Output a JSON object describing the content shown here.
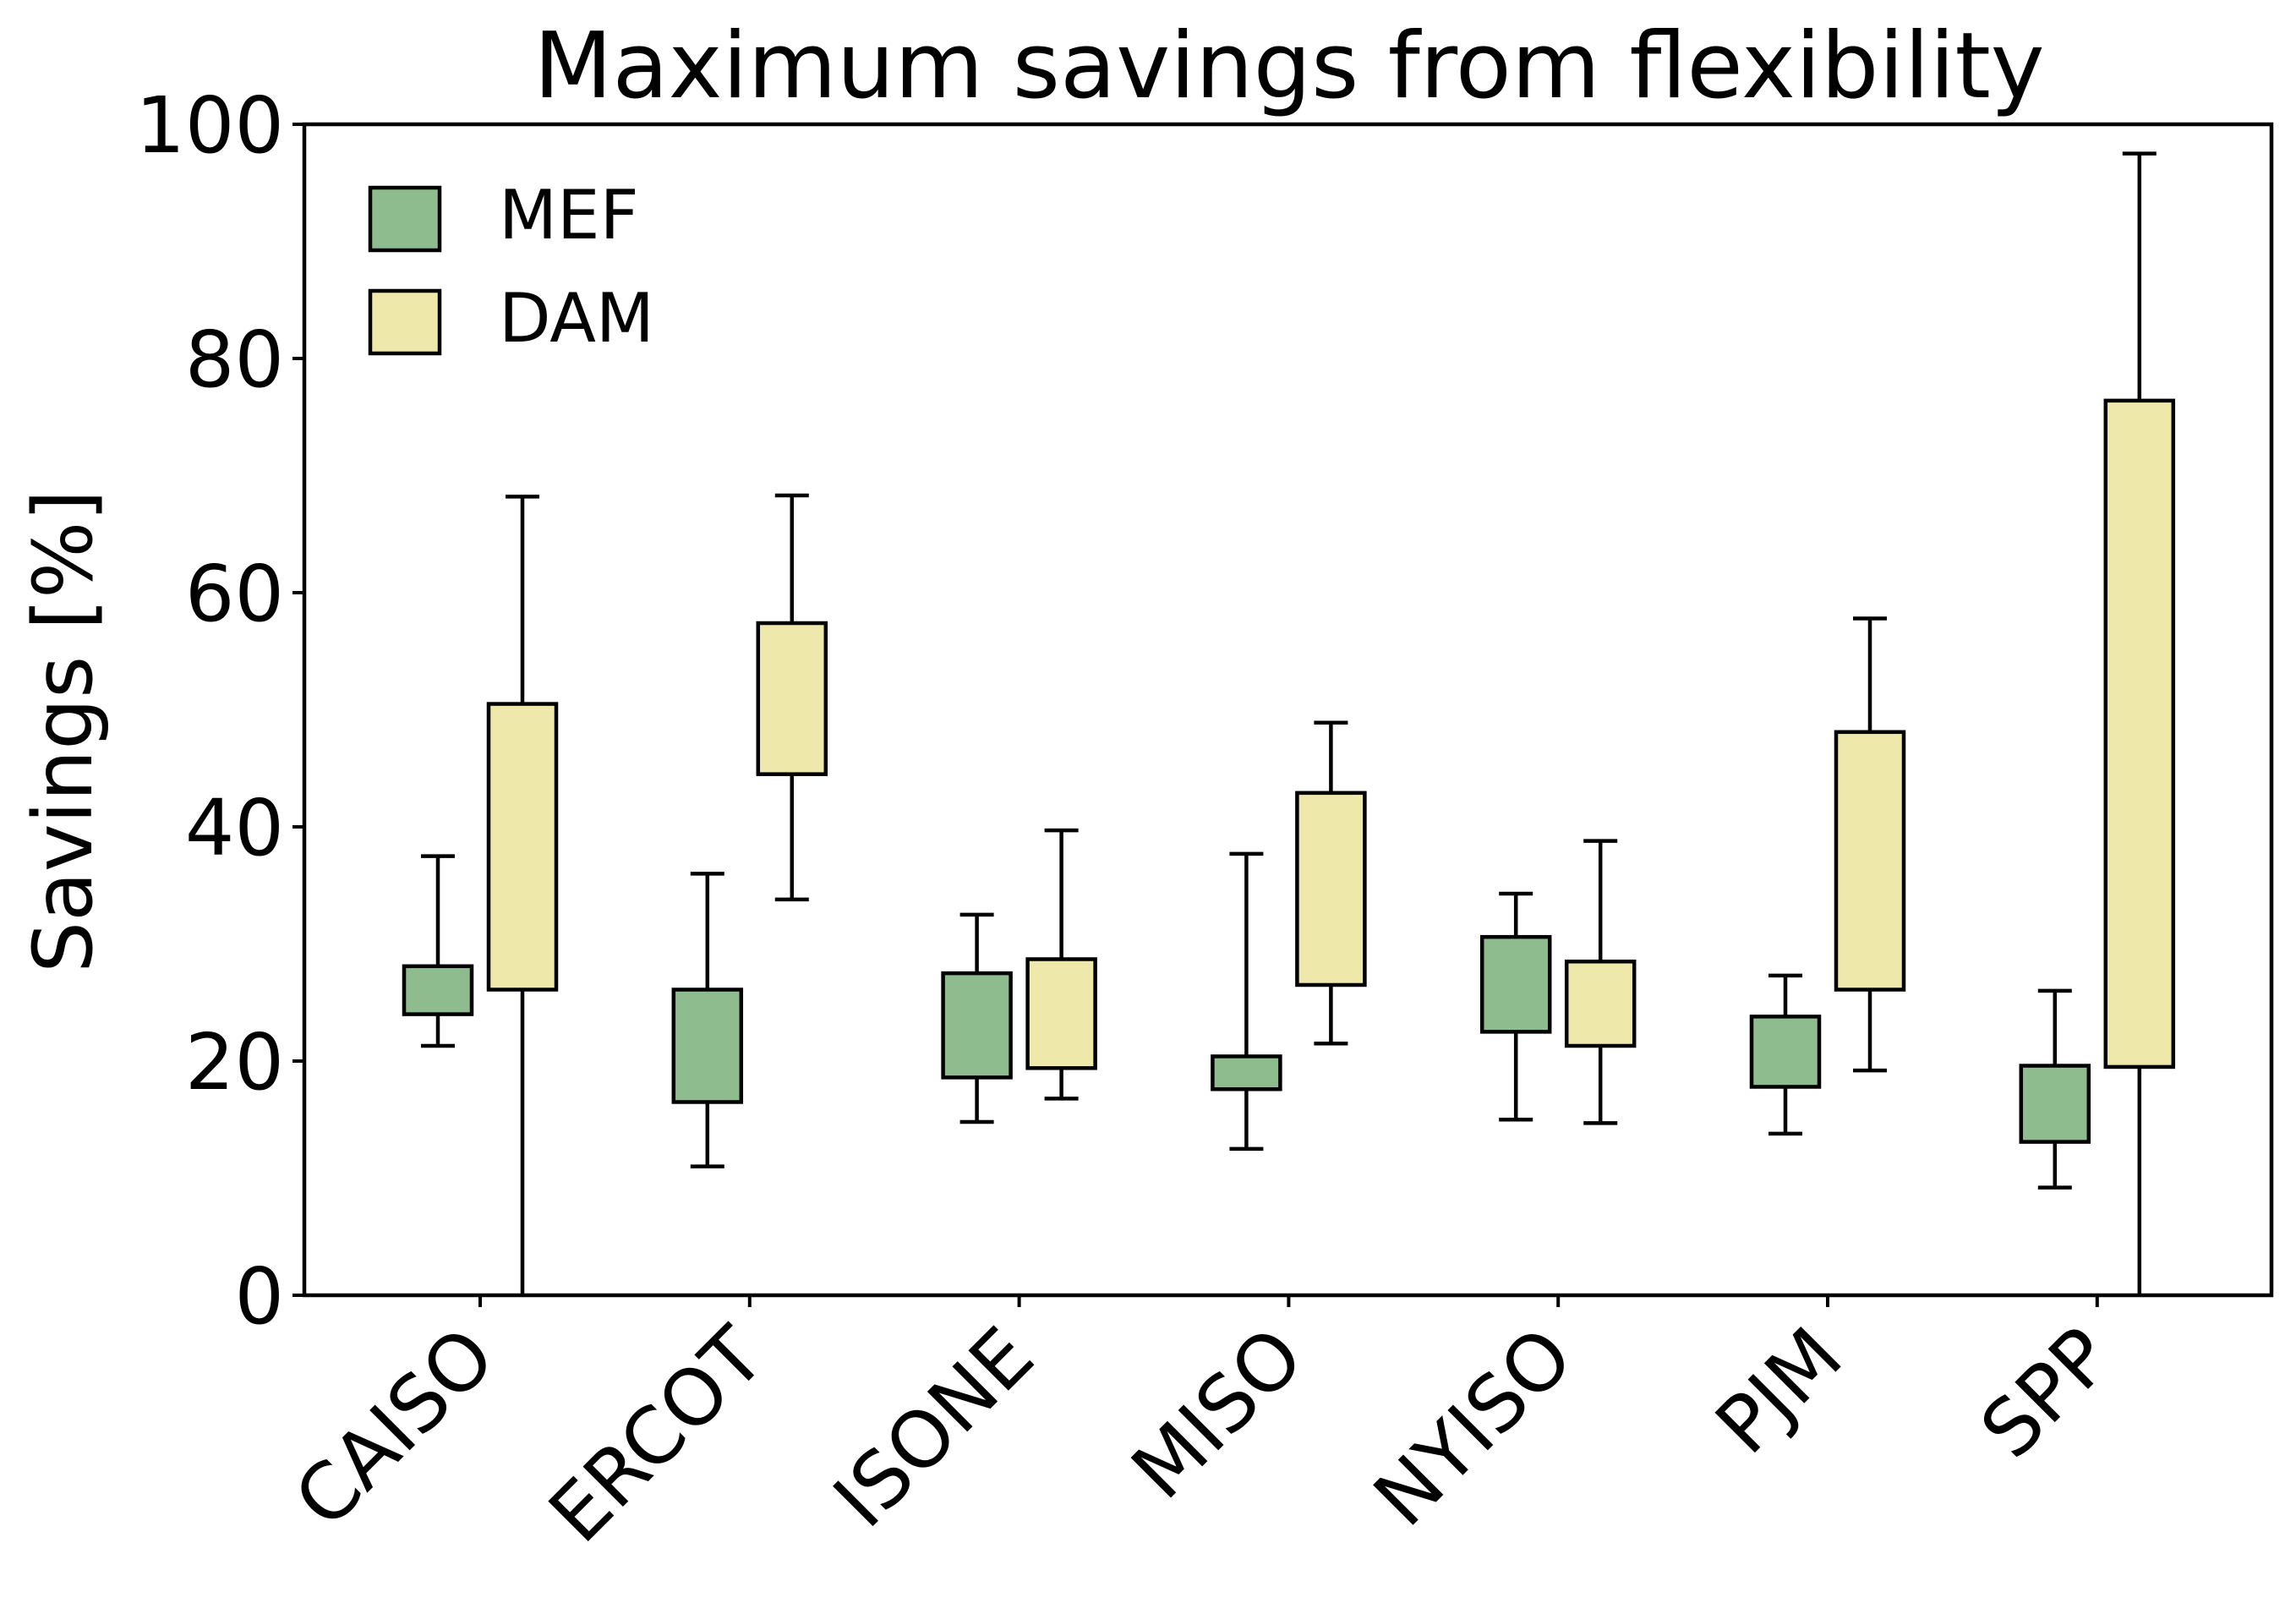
{
  "chart_data": {
    "type": "boxplot",
    "title": "Maximum savings from flexibility",
    "xlabel": "",
    "ylabel": "Savings [%]",
    "ylim": [
      0,
      100
    ],
    "yticks": [
      0,
      20,
      40,
      60,
      80,
      100
    ],
    "grid": false,
    "legend_position": "top-left",
    "categories": [
      "CAISO",
      "ERCOT",
      "ISONE",
      "MISO",
      "NYISO",
      "PJM",
      "SPP"
    ],
    "series": [
      {
        "name": "MEF",
        "color": "#8fbc8f",
        "boxes": [
          {
            "whislo": 21.3,
            "q1": 24.0,
            "q3": 28.1,
            "whishi": 37.5
          },
          {
            "whislo": 11.0,
            "q1": 16.5,
            "q3": 26.1,
            "whishi": 36.0
          },
          {
            "whislo": 14.8,
            "q1": 18.6,
            "q3": 27.5,
            "whishi": 32.5
          },
          {
            "whislo": 12.5,
            "q1": 17.6,
            "q3": 20.4,
            "whishi": 37.7
          },
          {
            "whislo": 15.0,
            "q1": 22.5,
            "q3": 30.6,
            "whishi": 34.3
          },
          {
            "whislo": 13.8,
            "q1": 17.8,
            "q3": 23.8,
            "whishi": 27.3
          },
          {
            "whislo": 9.2,
            "q1": 13.1,
            "q3": 19.6,
            "whishi": 26.0
          }
        ]
      },
      {
        "name": "DAM",
        "color": "#eee8aa",
        "boxes": [
          {
            "whislo": 0.0,
            "q1": 26.1,
            "q3": 50.5,
            "whishi": 68.2
          },
          {
            "whislo": 33.8,
            "q1": 44.5,
            "q3": 57.4,
            "whishi": 68.3
          },
          {
            "whislo": 16.8,
            "q1": 19.4,
            "q3": 28.7,
            "whishi": 39.7
          },
          {
            "whislo": 21.5,
            "q1": 26.5,
            "q3": 42.9,
            "whishi": 48.9
          },
          {
            "whislo": 14.7,
            "q1": 21.3,
            "q3": 28.5,
            "whishi": 38.8
          },
          {
            "whislo": 19.2,
            "q1": 26.1,
            "q3": 48.1,
            "whishi": 57.8
          },
          {
            "whislo": 0.0,
            "q1": 19.5,
            "q3": 76.4,
            "whishi": 97.5
          }
        ]
      }
    ]
  }
}
